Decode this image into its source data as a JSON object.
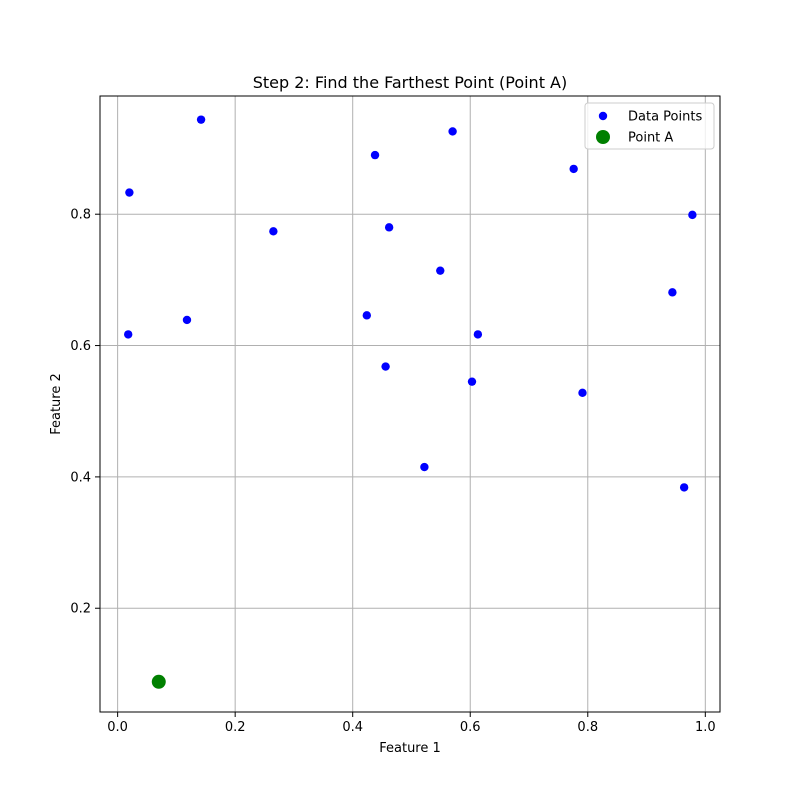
{
  "chart_data": {
    "type": "scatter",
    "title": "Step 2: Find the Farthest Point (Point A)",
    "xlabel": "Feature 1",
    "ylabel": "Feature 2",
    "xlim": [
      -0.03,
      1.025
    ],
    "ylim": [
      0.042,
      0.98
    ],
    "xticks": [
      0.0,
      0.2,
      0.4,
      0.6,
      0.8,
      1.0
    ],
    "xtick_labels": [
      "0.0",
      "0.2",
      "0.4",
      "0.6",
      "0.8",
      "1.0"
    ],
    "yticks": [
      0.2,
      0.4,
      0.6,
      0.8
    ],
    "ytick_labels": [
      "0.2",
      "0.4",
      "0.6",
      "0.8"
    ],
    "grid": true,
    "legend": {
      "placement": "top-right"
    },
    "series": [
      {
        "name": "Data Points",
        "color": "#0000ff",
        "marker": "circle",
        "points": [
          {
            "x": 0.142,
            "y": 0.944
          },
          {
            "x": 0.57,
            "y": 0.926
          },
          {
            "x": 0.438,
            "y": 0.89
          },
          {
            "x": 0.776,
            "y": 0.869
          },
          {
            "x": 0.02,
            "y": 0.833
          },
          {
            "x": 0.978,
            "y": 0.799
          },
          {
            "x": 0.462,
            "y": 0.78
          },
          {
            "x": 0.265,
            "y": 0.774
          },
          {
            "x": 0.549,
            "y": 0.714
          },
          {
            "x": 0.944,
            "y": 0.681
          },
          {
            "x": 0.424,
            "y": 0.646
          },
          {
            "x": 0.118,
            "y": 0.639
          },
          {
            "x": 0.018,
            "y": 0.617
          },
          {
            "x": 0.613,
            "y": 0.617
          },
          {
            "x": 0.456,
            "y": 0.568
          },
          {
            "x": 0.603,
            "y": 0.545
          },
          {
            "x": 0.791,
            "y": 0.528
          },
          {
            "x": 0.522,
            "y": 0.415
          },
          {
            "x": 0.964,
            "y": 0.384
          }
        ]
      },
      {
        "name": "Point A",
        "color": "#008000",
        "marker": "circle-large",
        "points": [
          {
            "x": 0.07,
            "y": 0.088
          }
        ]
      }
    ]
  }
}
